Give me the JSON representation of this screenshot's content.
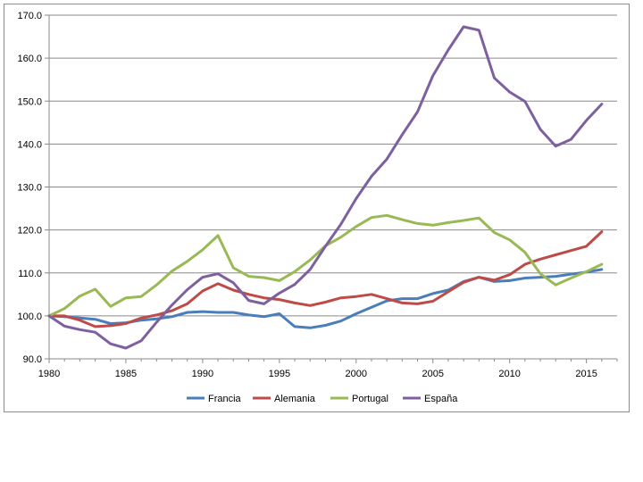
{
  "chart_data": {
    "type": "line",
    "title": "",
    "xlabel": "",
    "ylabel": "",
    "xlim": [
      1980,
      2017
    ],
    "ylim": [
      90,
      170
    ],
    "yticks": [
      90,
      100,
      110,
      120,
      130,
      140,
      150,
      160,
      170
    ],
    "ytick_labels": [
      "90.0",
      "100.0",
      "110.0",
      "120.0",
      "130.0",
      "140.0",
      "150.0",
      "160.0",
      "170.0"
    ],
    "xticks": [
      1980,
      1985,
      1990,
      1995,
      2000,
      2005,
      2010,
      2015
    ],
    "xtick_labels": [
      "1980",
      "1985",
      "1990",
      "1995",
      "2000",
      "2005",
      "2010",
      "2015"
    ],
    "grid": "horizontal",
    "legend_position": "bottom",
    "x": [
      1980,
      1981,
      1982,
      1983,
      1984,
      1985,
      1986,
      1987,
      1988,
      1989,
      1990,
      1991,
      1992,
      1993,
      1994,
      1995,
      1996,
      1997,
      1998,
      1999,
      2000,
      2001,
      2002,
      2003,
      2004,
      2005,
      2006,
      2007,
      2008,
      2009,
      2010,
      2011,
      2012,
      2013,
      2014,
      2015,
      2016
    ],
    "series": [
      {
        "name": "Francia",
        "color": "#4a7ebb",
        "values": [
          100,
          99.8,
          99.5,
          99.2,
          98.2,
          98.4,
          99.0,
          99.3,
          99.8,
          100.8,
          101.0,
          100.8,
          100.8,
          100.2,
          99.8,
          100.5,
          97.5,
          97.2,
          97.8,
          98.8,
          100.5,
          102.0,
          103.5,
          104.0,
          104.0,
          105.2,
          106.0,
          108.0,
          109.0,
          108.0,
          108.2,
          108.8,
          109.0,
          109.2,
          109.7,
          110.2,
          110.8
        ]
      },
      {
        "name": "Alemania",
        "color": "#be4b48",
        "values": [
          100,
          100.0,
          99.0,
          97.5,
          97.7,
          98.2,
          99.5,
          100.2,
          101.2,
          102.8,
          105.8,
          107.5,
          106.0,
          105.0,
          104.2,
          103.8,
          103.0,
          102.4,
          103.2,
          104.2,
          104.5,
          105.0,
          104.0,
          103.0,
          102.8,
          103.4,
          105.6,
          107.8,
          109.0,
          108.3,
          109.6,
          112.0,
          113.2,
          114.2,
          115.2,
          116.2,
          119.6
        ]
      },
      {
        "name": "Portugal",
        "color": "#98b954",
        "values": [
          100,
          101.7,
          104.6,
          106.2,
          102.2,
          104.2,
          104.5,
          107.2,
          110.4,
          112.7,
          115.4,
          118.7,
          111.2,
          109.2,
          108.9,
          108.2,
          110.3,
          113.0,
          116.3,
          118.3,
          120.8,
          122.9,
          123.4,
          122.4,
          121.5,
          121.1,
          121.7,
          122.2,
          122.8,
          119.4,
          117.7,
          114.8,
          109.8,
          107.2,
          108.8,
          110.3,
          112.0
        ]
      },
      {
        "name": "España",
        "color": "#7d60a0",
        "values": [
          100,
          97.6,
          96.8,
          96.2,
          93.5,
          92.5,
          94.2,
          98.5,
          102.5,
          106.1,
          109.0,
          109.8,
          107.7,
          103.6,
          102.8,
          105.3,
          107.3,
          110.8,
          116.2,
          121.3,
          127.3,
          132.5,
          136.5,
          142.2,
          147.5,
          155.9,
          161.9,
          167.3,
          166.5,
          155.4,
          152.1,
          149.9,
          143.4,
          139.5,
          141.1,
          145.5,
          149.3
        ]
      }
    ]
  }
}
